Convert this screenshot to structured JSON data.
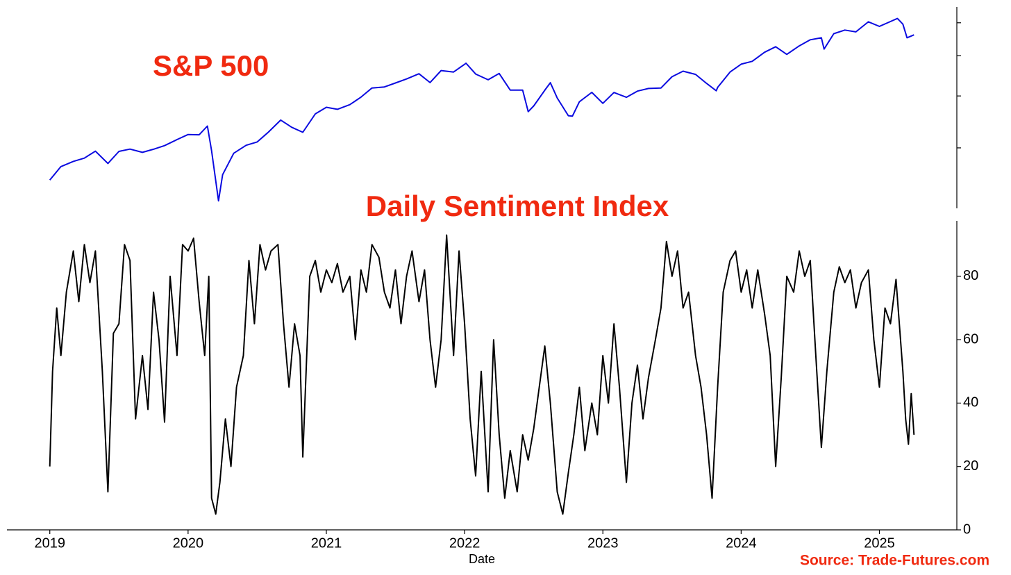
{
  "chart_data": [
    {
      "type": "line",
      "title": "S&P 500",
      "log_scale": true,
      "xlim": [
        2018.69,
        2025.56
      ],
      "ylim": [
        2146,
        6550
      ],
      "yticks": [
        3000,
        4000,
        5000,
        6000
      ],
      "series": [
        {
          "name": "S&P 500",
          "color": "#0a0ae0",
          "x": [
            2019.0,
            2019.08,
            2019.17,
            2019.25,
            2019.33,
            2019.42,
            2019.5,
            2019.58,
            2019.67,
            2019.75,
            2019.83,
            2019.92,
            2020.0,
            2020.08,
            2020.14,
            2020.17,
            2020.22,
            2020.25,
            2020.33,
            2020.42,
            2020.5,
            2020.58,
            2020.67,
            2020.75,
            2020.83,
            2020.92,
            2021.0,
            2021.08,
            2021.17,
            2021.25,
            2021.33,
            2021.42,
            2021.5,
            2021.58,
            2021.67,
            2021.75,
            2021.83,
            2021.92,
            2022.0,
            2022.01,
            2022.08,
            2022.17,
            2022.25,
            2022.33,
            2022.42,
            2022.46,
            2022.5,
            2022.58,
            2022.62,
            2022.67,
            2022.75,
            2022.78,
            2022.83,
            2022.92,
            2023.0,
            2023.08,
            2023.17,
            2023.25,
            2023.33,
            2023.42,
            2023.5,
            2023.58,
            2023.67,
            2023.75,
            2023.82,
            2023.83,
            2023.92,
            2024.0,
            2024.08,
            2024.17,
            2024.25,
            2024.33,
            2024.42,
            2024.5,
            2024.58,
            2024.6,
            2024.67,
            2024.75,
            2024.83,
            2024.92,
            2025.0,
            2025.08,
            2025.13,
            2025.17,
            2025.2,
            2025.25
          ],
          "values": [
            2510,
            2704,
            2784,
            2834,
            2946,
            2752,
            2942,
            2980,
            2926,
            2977,
            3038,
            3141,
            3231,
            3226,
            3386,
            2954,
            2237,
            2585,
            2912,
            3044,
            3100,
            3271,
            3500,
            3363,
            3270,
            3622,
            3756,
            3714,
            3811,
            3973,
            4181,
            4204,
            4298,
            4395,
            4523,
            4308,
            4605,
            4567,
            4766,
            4796,
            4516,
            4374,
            4530,
            4132,
            4132,
            3667,
            3785,
            4130,
            4305,
            3955,
            3586,
            3577,
            3872,
            4080,
            3840,
            4077,
            3970,
            4109,
            4169,
            4180,
            4450,
            4589,
            4508,
            4288,
            4117,
            4194,
            4568,
            4770,
            4846,
            5096,
            5254,
            5036,
            5278,
            5460,
            5522,
            5186,
            5648,
            5762,
            5705,
            6032,
            5882,
            6041,
            6144,
            5955,
            5522,
            5612
          ]
        }
      ]
    },
    {
      "type": "line",
      "title": "Daily Sentiment Index",
      "xlabel": "Date",
      "xlim": [
        2018.69,
        2025.56
      ],
      "xticks": [
        2019,
        2020,
        2021,
        2022,
        2023,
        2024,
        2025
      ],
      "ylim": [
        0,
        97.5
      ],
      "yticks": [
        0,
        20,
        40,
        60,
        80
      ],
      "series": [
        {
          "name": "Daily Sentiment Index",
          "color": "#000000",
          "x": [
            2019.0,
            2019.02,
            2019.05,
            2019.08,
            2019.12,
            2019.17,
            2019.21,
            2019.25,
            2019.29,
            2019.33,
            2019.38,
            2019.42,
            2019.46,
            2019.5,
            2019.54,
            2019.58,
            2019.62,
            2019.67,
            2019.71,
            2019.75,
            2019.79,
            2019.83,
            2019.87,
            2019.92,
            2019.96,
            2020.0,
            2020.04,
            2020.08,
            2020.12,
            2020.15,
            2020.17,
            2020.2,
            2020.23,
            2020.27,
            2020.31,
            2020.35,
            2020.4,
            2020.44,
            2020.48,
            2020.52,
            2020.56,
            2020.6,
            2020.65,
            2020.69,
            2020.73,
            2020.77,
            2020.81,
            2020.83,
            2020.88,
            2020.92,
            2020.96,
            2021.0,
            2021.04,
            2021.08,
            2021.12,
            2021.17,
            2021.21,
            2021.25,
            2021.29,
            2021.33,
            2021.38,
            2021.42,
            2021.46,
            2021.5,
            2021.54,
            2021.58,
            2021.62,
            2021.67,
            2021.71,
            2021.75,
            2021.79,
            2021.83,
            2021.87,
            2021.92,
            2021.96,
            2022.0,
            2022.04,
            2022.08,
            2022.12,
            2022.17,
            2022.21,
            2022.25,
            2022.29,
            2022.33,
            2022.38,
            2022.42,
            2022.46,
            2022.5,
            2022.54,
            2022.58,
            2022.62,
            2022.67,
            2022.71,
            2022.75,
            2022.79,
            2022.83,
            2022.87,
            2022.92,
            2022.96,
            2023.0,
            2023.04,
            2023.08,
            2023.12,
            2023.17,
            2023.21,
            2023.25,
            2023.29,
            2023.33,
            2023.38,
            2023.42,
            2023.46,
            2023.5,
            2023.54,
            2023.58,
            2023.62,
            2023.67,
            2023.71,
            2023.75,
            2023.79,
            2023.83,
            2023.87,
            2023.92,
            2023.96,
            2024.0,
            2024.04,
            2024.08,
            2024.12,
            2024.17,
            2024.21,
            2024.25,
            2024.29,
            2024.33,
            2024.38,
            2024.42,
            2024.46,
            2024.5,
            2024.54,
            2024.58,
            2024.62,
            2024.67,
            2024.71,
            2024.75,
            2024.79,
            2024.83,
            2024.87,
            2024.92,
            2024.96,
            2025.0,
            2025.04,
            2025.08,
            2025.12,
            2025.17,
            2025.19,
            2025.21,
            2025.23,
            2025.25
          ],
          "values": [
            20,
            50,
            70,
            55,
            75,
            88,
            72,
            90,
            78,
            88,
            50,
            12,
            62,
            65,
            90,
            85,
            35,
            55,
            38,
            75,
            60,
            34,
            80,
            55,
            90,
            88,
            92,
            72,
            55,
            80,
            10,
            5,
            15,
            35,
            20,
            45,
            55,
            85,
            65,
            90,
            82,
            88,
            90,
            65,
            45,
            65,
            55,
            23,
            80,
            85,
            75,
            82,
            78,
            84,
            75,
            80,
            60,
            82,
            75,
            90,
            86,
            75,
            70,
            82,
            65,
            80,
            88,
            72,
            82,
            60,
            45,
            60,
            93,
            55,
            88,
            65,
            35,
            17,
            50,
            12,
            60,
            30,
            10,
            25,
            12,
            30,
            22,
            32,
            45,
            58,
            40,
            12,
            5,
            18,
            30,
            45,
            25,
            40,
            30,
            55,
            40,
            65,
            45,
            15,
            40,
            52,
            35,
            48,
            60,
            70,
            91,
            80,
            88,
            70,
            75,
            55,
            45,
            30,
            10,
            45,
            75,
            85,
            88,
            75,
            82,
            70,
            82,
            68,
            55,
            20,
            48,
            80,
            75,
            88,
            80,
            85,
            55,
            26,
            50,
            75,
            83,
            78,
            82,
            70,
            78,
            82,
            60,
            45,
            70,
            65,
            79,
            50,
            35,
            27,
            43,
            30
          ]
        }
      ]
    }
  ],
  "source": "Source: Trade-Futures.com"
}
